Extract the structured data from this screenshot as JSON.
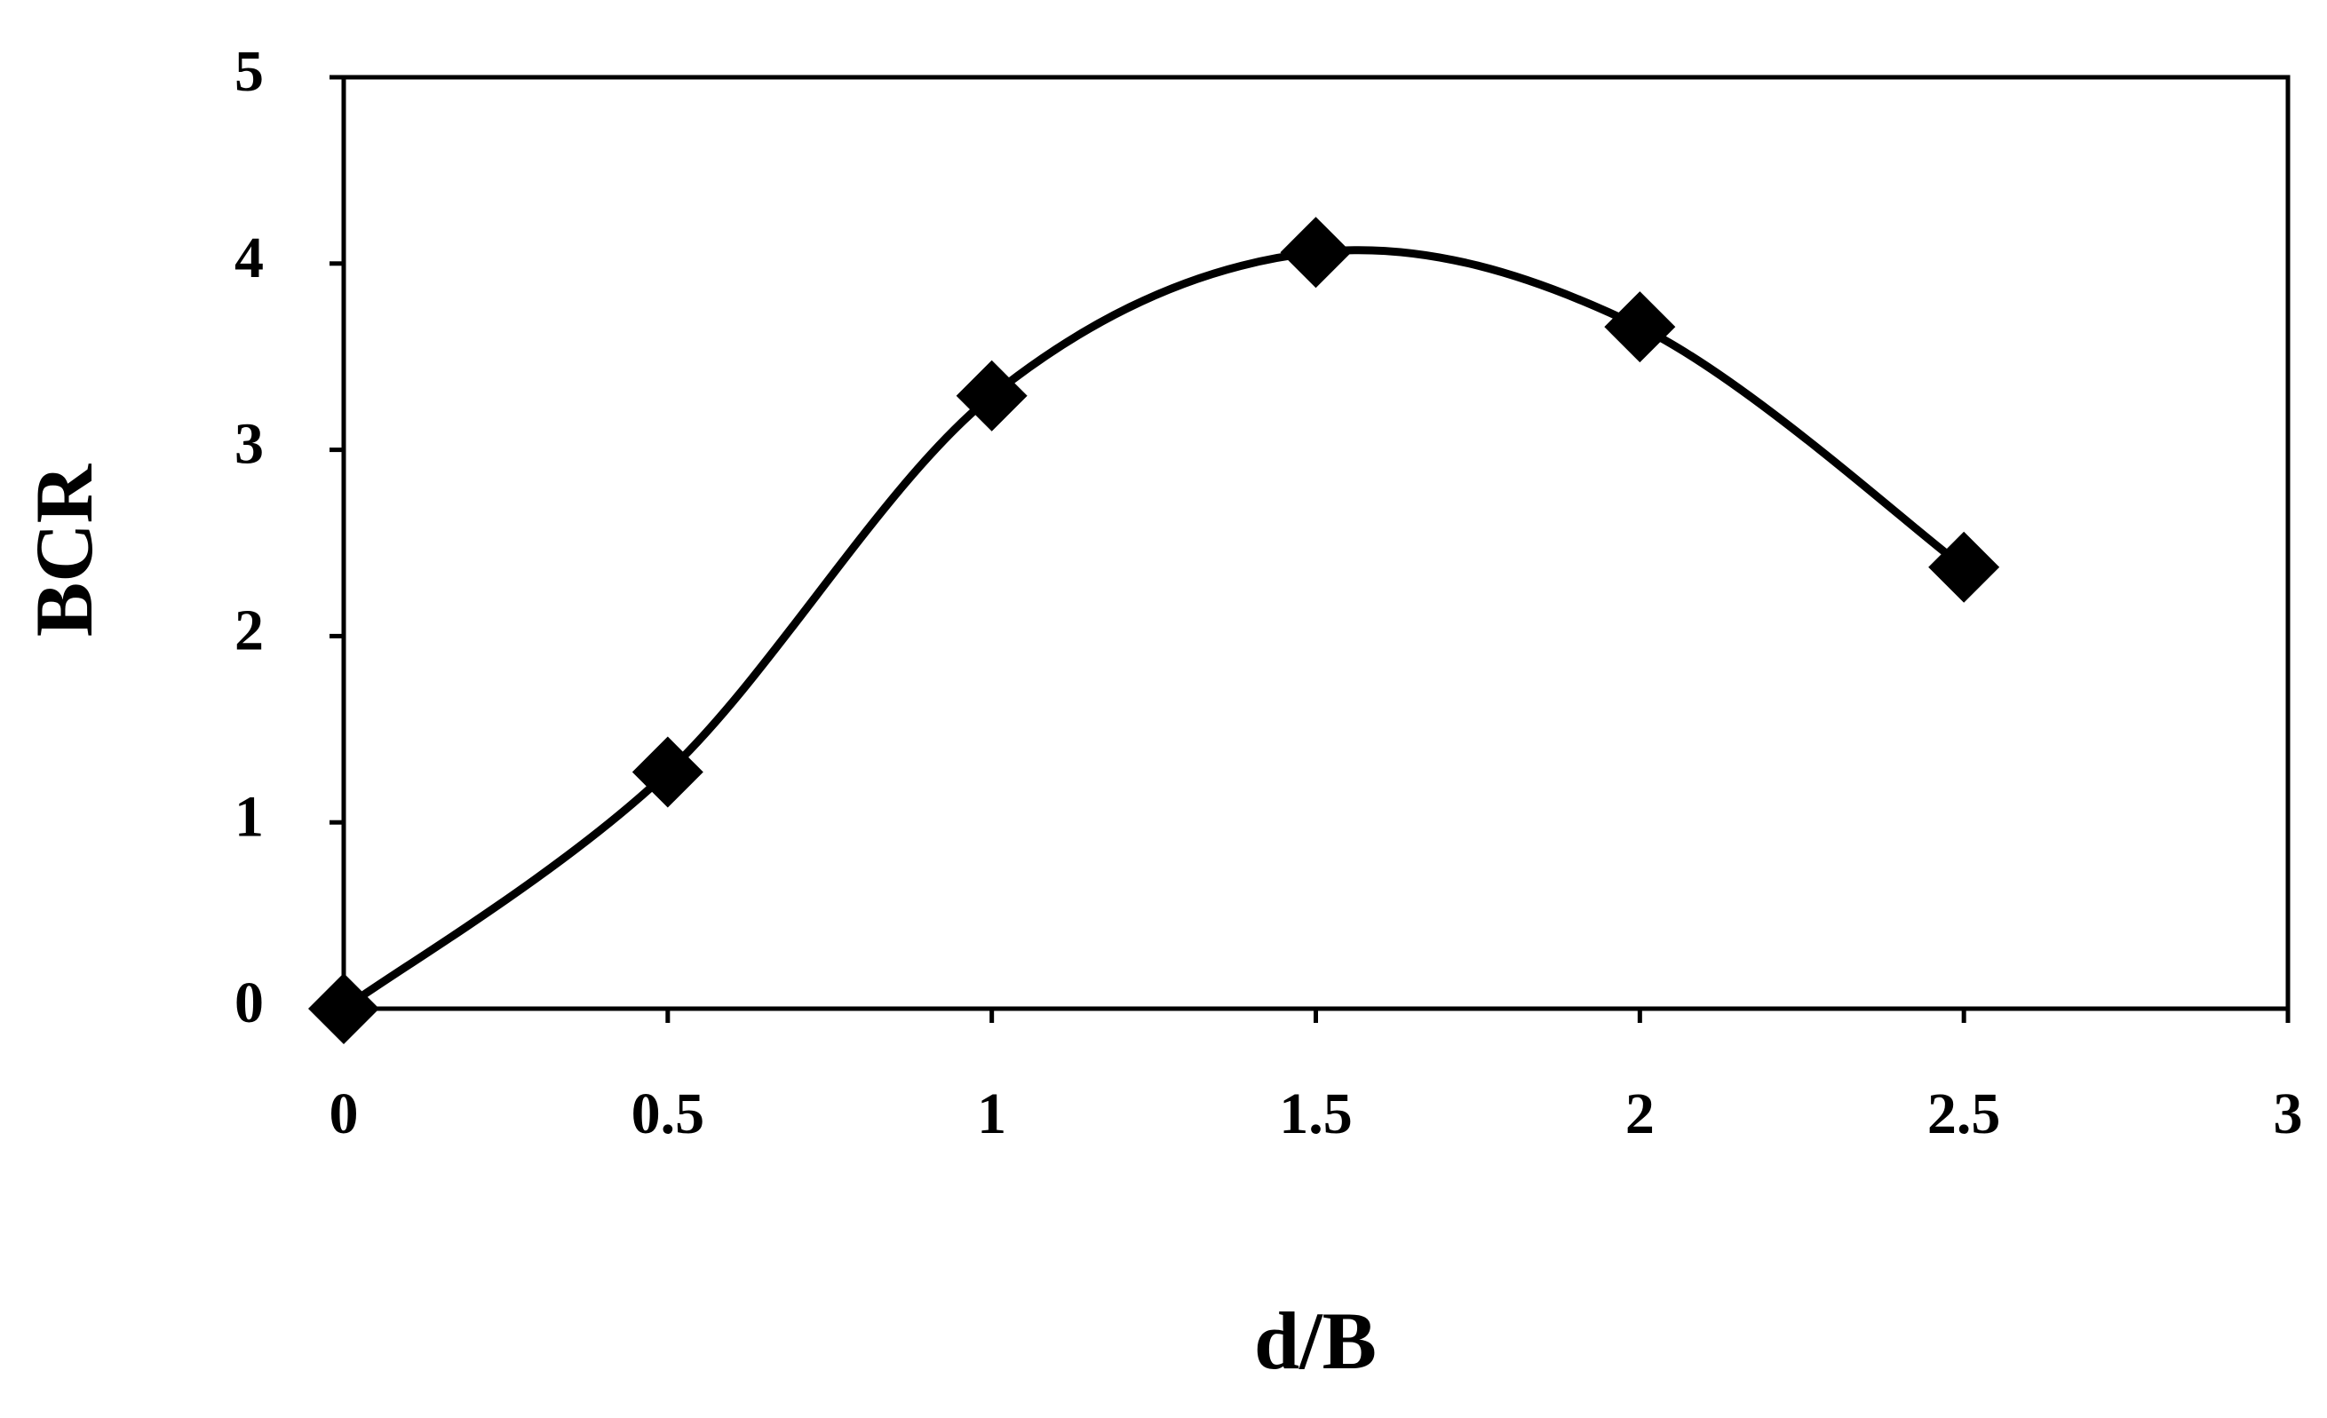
{
  "chart_data": {
    "type": "line",
    "x_label": "d/B",
    "y_label": "BCR",
    "x": [
      0,
      0.5,
      1,
      1.5,
      2,
      2.5
    ],
    "series": [
      {
        "color": "#000000",
        "values": [
          0,
          1.27,
          3.29,
          4.06,
          3.66,
          2.37
        ]
      }
    ],
    "xlim": [
      0,
      3
    ],
    "xticks": [
      0,
      0.5,
      1,
      1.5,
      2,
      2.5,
      3
    ],
    "ylim": [
      0,
      5
    ],
    "yticks": [
      0,
      1,
      2,
      3,
      4,
      5
    ],
    "smooth": true,
    "marker": "diamond",
    "grid": false
  }
}
